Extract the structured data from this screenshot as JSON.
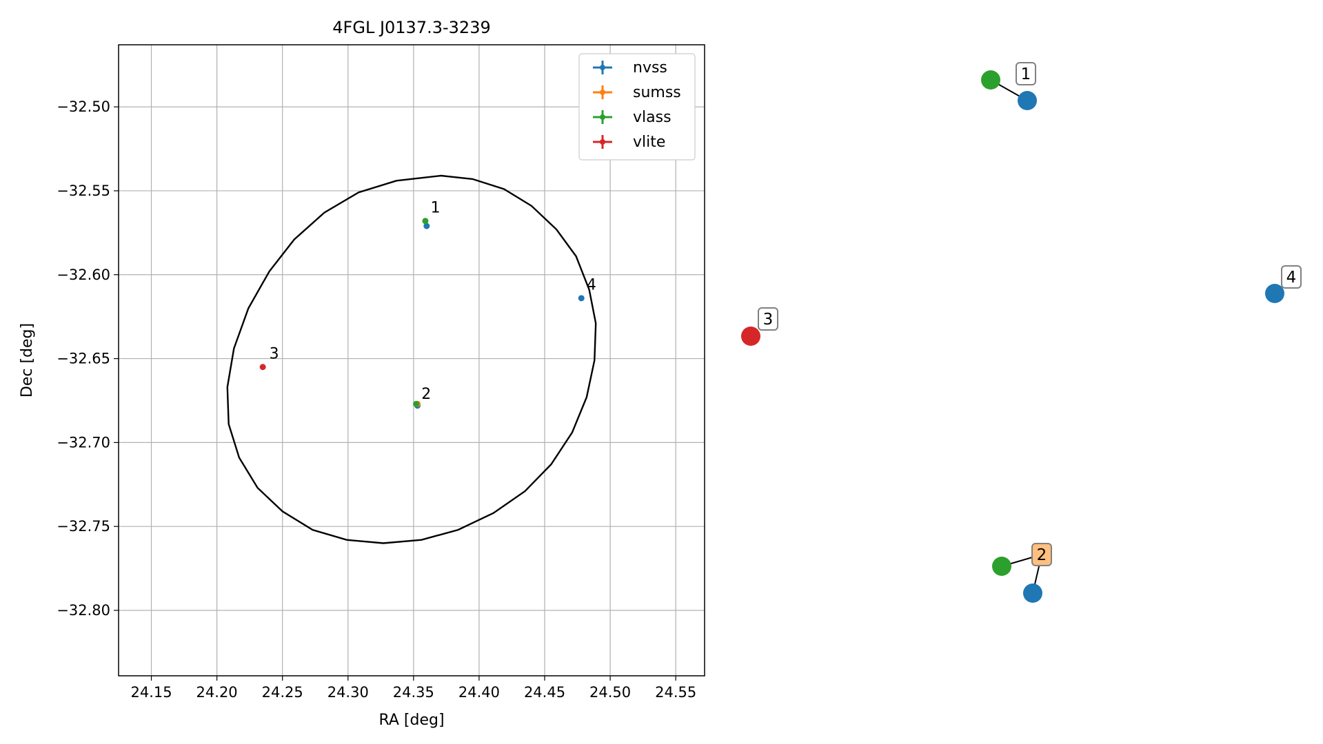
{
  "chart_data": [
    {
      "type": "scatter",
      "title": "4FGL J0137.3-3239",
      "xlabel": "RA [deg]",
      "ylabel": "Dec [deg]",
      "xlim": [
        24.125,
        24.572
      ],
      "ylim": [
        -32.839,
        -32.463
      ],
      "xticks": [
        24.15,
        24.2,
        24.25,
        24.3,
        24.35,
        24.4,
        24.45,
        24.5,
        24.55
      ],
      "xtick_labels": [
        "24.15",
        "24.20",
        "24.25",
        "24.30",
        "24.35",
        "24.40",
        "24.45",
        "24.50",
        "24.55"
      ],
      "yticks": [
        -32.5,
        -32.55,
        -32.6,
        -32.65,
        -32.7,
        -32.75,
        -32.8
      ],
      "ytick_labels": [
        "−32.50",
        "−32.55",
        "−32.60",
        "−32.65",
        "−32.70",
        "−32.75",
        "−32.80"
      ],
      "grid": true,
      "legend_position": "top-right",
      "series": [
        {
          "name": "nvss",
          "color": "#1f77b4",
          "points": [
            {
              "x": 24.36,
              "y": -32.571
            },
            {
              "x": 24.353,
              "y": -32.678
            },
            {
              "x": 24.478,
              "y": -32.614
            }
          ]
        },
        {
          "name": "sumss",
          "color": "#ff7f0e",
          "points": [
            {
              "x": 24.353,
              "y": -32.677
            }
          ]
        },
        {
          "name": "vlass",
          "color": "#2ca02c",
          "points": [
            {
              "x": 24.359,
              "y": -32.568
            },
            {
              "x": 24.352,
              "y": -32.677
            }
          ]
        },
        {
          "name": "vlite",
          "color": "#d62728",
          "points": [
            {
              "x": 24.235,
              "y": -32.655
            }
          ]
        }
      ],
      "annotations": [
        {
          "text": "1",
          "x": 24.363,
          "y": -32.563
        },
        {
          "text": "2",
          "x": 24.356,
          "y": -32.674
        },
        {
          "text": "3",
          "x": 24.24,
          "y": -32.65
        },
        {
          "text": "4",
          "x": 24.482,
          "y": -32.609
        }
      ],
      "ellipse": {
        "shape": "confidence ellipse",
        "color": "#000000",
        "points": [
          {
            "x": 24.371,
            "y": -32.541
          },
          {
            "x": 24.395,
            "y": -32.543
          },
          {
            "x": 24.419,
            "y": -32.549
          },
          {
            "x": 24.44,
            "y": -32.559
          },
          {
            "x": 24.459,
            "y": -32.573
          },
          {
            "x": 24.474,
            "y": -32.589
          },
          {
            "x": 24.484,
            "y": -32.609
          },
          {
            "x": 24.489,
            "y": -32.629
          },
          {
            "x": 24.488,
            "y": -32.651
          },
          {
            "x": 24.482,
            "y": -32.673
          },
          {
            "x": 24.471,
            "y": -32.694
          },
          {
            "x": 24.455,
            "y": -32.713
          },
          {
            "x": 24.435,
            "y": -32.729
          },
          {
            "x": 24.411,
            "y": -32.742
          },
          {
            "x": 24.384,
            "y": -32.752
          },
          {
            "x": 24.356,
            "y": -32.758
          },
          {
            "x": 24.327,
            "y": -32.76
          },
          {
            "x": 24.299,
            "y": -32.758
          },
          {
            "x": 24.273,
            "y": -32.752
          },
          {
            "x": 24.25,
            "y": -32.741
          },
          {
            "x": 24.231,
            "y": -32.727
          },
          {
            "x": 24.217,
            "y": -32.709
          },
          {
            "x": 24.209,
            "y": -32.689
          },
          {
            "x": 24.208,
            "y": -32.667
          },
          {
            "x": 24.213,
            "y": -32.644
          },
          {
            "x": 24.224,
            "y": -32.62
          },
          {
            "x": 24.24,
            "y": -32.598
          },
          {
            "x": 24.259,
            "y": -32.579
          },
          {
            "x": 24.282,
            "y": -32.563
          },
          {
            "x": 24.308,
            "y": -32.551
          },
          {
            "x": 24.337,
            "y": -32.544
          }
        ]
      }
    },
    {
      "type": "diagram",
      "nodes": [
        {
          "id": "n1a",
          "color": "#2ca02c"
        },
        {
          "id": "n1b",
          "color": "#1f77b4"
        },
        {
          "id": "n3",
          "color": "#d62728"
        },
        {
          "id": "n4",
          "color": "#1f77b4"
        },
        {
          "id": "n2a",
          "color": "#2ca02c"
        },
        {
          "id": "n2b",
          "color": "#1f77b4"
        }
      ],
      "edges": [
        {
          "from": "n1a",
          "to": "n1b"
        },
        {
          "from": "n2a",
          "to": "label2"
        },
        {
          "from": "n2b",
          "to": "label2"
        }
      ],
      "labels": [
        {
          "id": "label1",
          "text": "1",
          "color": "#ffffff"
        },
        {
          "id": "label2",
          "text": "2",
          "color": "#ffbf7f"
        },
        {
          "id": "label3",
          "text": "3",
          "color": "#ffffff"
        },
        {
          "id": "label4",
          "text": "4",
          "color": "#ffffff"
        }
      ]
    }
  ]
}
